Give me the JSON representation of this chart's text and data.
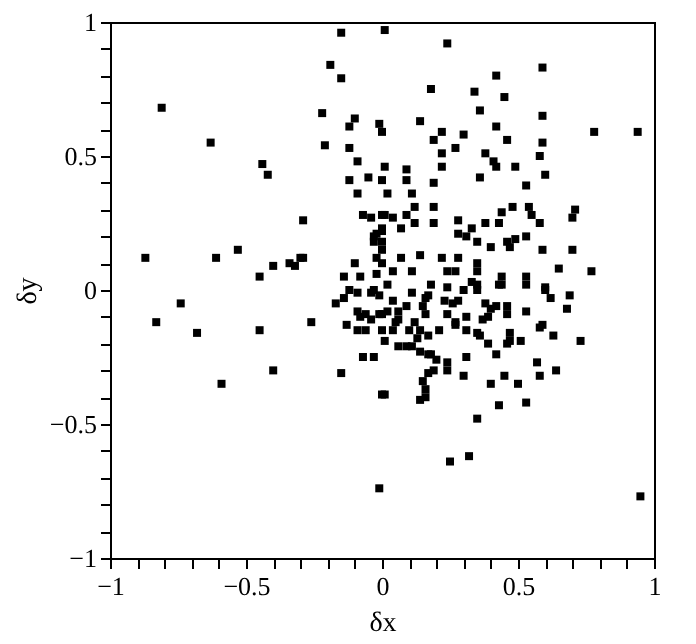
{
  "chart_data": {
    "type": "scatter",
    "xlabel": "δx",
    "ylabel": "δy",
    "marker": "square",
    "grid": false,
    "xlim": [
      -1,
      1
    ],
    "ylim": [
      -1,
      1
    ],
    "xticks": [
      -1,
      {
        "value": -0.9,
        "label": null
      },
      {
        "value": -0.8,
        "label": null
      },
      {
        "value": -0.7,
        "label": null
      },
      {
        "value": -0.6,
        "label": null
      },
      -0.5,
      {
        "value": -0.4,
        "label": null
      },
      {
        "value": -0.3,
        "label": null
      },
      {
        "value": -0.2,
        "label": null
      },
      {
        "value": -0.1,
        "label": null
      },
      0,
      {
        "value": 0.1,
        "label": null
      },
      {
        "value": 0.2,
        "label": null
      },
      {
        "value": 0.3,
        "label": null
      },
      {
        "value": 0.4,
        "label": null
      },
      0.5,
      {
        "value": 0.6,
        "label": null
      },
      {
        "value": 0.7,
        "label": null
      },
      {
        "value": 0.8,
        "label": null
      },
      {
        "value": 0.9,
        "label": null
      },
      1
    ],
    "yticks": [
      -1,
      {
        "value": -0.9,
        "label": null
      },
      {
        "value": -0.8,
        "label": null
      },
      {
        "value": -0.7,
        "label": null
      },
      {
        "value": -0.6,
        "label": null
      },
      -0.5,
      {
        "value": -0.4,
        "label": null
      },
      {
        "value": -0.3,
        "label": null
      },
      {
        "value": -0.2,
        "label": null
      },
      {
        "value": -0.1,
        "label": null
      },
      0,
      {
        "value": 0.1,
        "label": null
      },
      {
        "value": 0.2,
        "label": null
      },
      {
        "value": 0.3,
        "label": null
      },
      {
        "value": 0.4,
        "label": null
      },
      0.5,
      {
        "value": 0.6,
        "label": null
      },
      {
        "value": 0.7,
        "label": null
      },
      {
        "value": 0.8,
        "label": null
      },
      {
        "value": 0.9,
        "label": null
      },
      1
    ],
    "series": [
      {
        "color": "#000000",
        "x": [
          -0.81,
          -0.63,
          -0.44,
          -0.42,
          -0.29,
          -0.87,
          -0.61,
          -0.53,
          -0.45,
          -0.4,
          -0.34,
          -0.32,
          -0.3,
          -0.29,
          -0.15,
          -0.19,
          -0.15,
          -0.22,
          -0.1,
          -0.12,
          -0.01,
          0.0,
          -0.21,
          -0.12,
          -0.09,
          -0.12,
          -0.05,
          0.0,
          -0.09,
          -0.07,
          -0.04,
          0.0,
          -0.03,
          -0.02,
          0.0,
          -0.03,
          0.0,
          -0.1,
          -0.14,
          -0.08,
          -0.02,
          0.0,
          -0.02,
          -0.12,
          -0.03,
          0.01,
          0.24,
          0.59,
          0.42,
          0.18,
          0.34,
          0.45,
          0.36,
          0.59,
          0.14,
          0.42,
          0.22,
          0.19,
          0.3,
          0.78,
          0.94,
          0.46,
          0.59,
          0.27,
          0.22,
          0.38,
          0.58,
          0.41,
          0.42,
          0.49,
          0.22,
          0.01,
          0.09,
          0.6,
          0.09,
          0.36,
          0.19,
          0.53,
          0.02,
          0.11,
          0.48,
          0.54,
          0.12,
          0.19,
          0.71,
          0.44,
          0.55,
          0.7,
          0.01,
          0.04,
          0.09,
          0.28,
          0.38,
          0.43,
          0.12,
          0.19,
          0.0,
          0.07,
          0.33,
          0.58,
          0.28,
          0.31,
          0.49,
          0.53,
          0.35,
          0.46,
          0.47,
          0.4,
          0.59,
          0.7,
          0.0,
          0.07,
          0.14,
          0.22,
          0.28,
          0.35,
          0.65,
          0.77,
          0.04,
          0.11,
          0.24,
          0.27,
          0.35,
          0.44,
          0.53,
          0.18,
          0.24,
          0.6,
          0.02,
          0.33,
          -0.83,
          -0.74,
          -0.68,
          -0.59,
          -0.45,
          -0.4,
          -0.26,
          -0.17,
          -0.14,
          -0.09,
          -0.09,
          -0.08,
          -0.06,
          -0.04,
          -0.13,
          -0.09,
          -0.06,
          -0.04,
          -0.01,
          -0.01,
          -0.07,
          -0.03,
          -0.15,
          0.0,
          -0.01,
          0.25,
          0.32,
          0.95,
          0.01,
          0.14,
          0.16,
          0.16,
          0.15,
          0.35,
          0.43,
          0.53,
          0.4,
          0.5,
          0.45,
          0.3,
          0.24,
          0.17,
          0.19,
          0.58,
          0.64,
          0.57,
          0.24,
          0.2,
          0.31,
          0.42,
          0.18,
          0.73,
          0.63,
          0.59,
          0.58,
          0.47,
          0.51,
          0.46,
          0.39,
          0.47,
          0.35,
          0.36,
          0.31,
          0.27,
          0.21,
          0.06,
          0.09,
          0.11,
          0.14,
          0.17,
          0.13,
          0.17,
          0.01,
          0.0,
          0.04,
          0.1,
          0.14,
          0.06,
          0.05,
          0.12,
          0.0,
          0.02,
          0.06,
          0.09,
          0.16,
          0.15,
          0.16,
          0.17,
          0.11,
          0.04,
          0.23,
          0.26,
          0.28,
          0.24,
          0.27,
          0.31,
          0.3,
          0.35,
          0.38,
          0.4,
          0.42,
          0.37,
          0.39,
          0.46,
          0.46,
          0.43,
          0.44,
          0.35,
          0.53,
          0.53,
          0.6,
          0.62,
          0.69,
          0.68
        ],
        "values": [
          0.68,
          0.55,
          0.47,
          0.43,
          0.26,
          0.12,
          0.12,
          0.15,
          0.05,
          0.09,
          0.1,
          0.09,
          0.12,
          0.12,
          0.96,
          0.84,
          0.79,
          0.66,
          0.64,
          0.61,
          0.62,
          0.59,
          0.54,
          0.53,
          0.48,
          0.41,
          0.42,
          0.41,
          0.36,
          0.28,
          0.27,
          0.28,
          0.2,
          0.21,
          0.22,
          0.18,
          0.18,
          0.1,
          0.05,
          0.05,
          0.12,
          0.1,
          0.06,
          0.0,
          0.0,
          0.97,
          0.92,
          0.83,
          0.8,
          0.75,
          0.74,
          0.72,
          0.67,
          0.65,
          0.63,
          0.61,
          0.59,
          0.56,
          0.58,
          0.59,
          0.59,
          0.56,
          0.55,
          0.53,
          0.51,
          0.51,
          0.5,
          0.48,
          0.46,
          0.46,
          0.46,
          0.46,
          0.45,
          0.43,
          0.41,
          0.42,
          0.4,
          0.39,
          0.36,
          0.36,
          0.31,
          0.31,
          0.31,
          0.31,
          0.3,
          0.29,
          0.28,
          0.27,
          0.28,
          0.27,
          0.28,
          0.26,
          0.25,
          0.25,
          0.25,
          0.25,
          0.23,
          0.23,
          0.23,
          0.25,
          0.21,
          0.2,
          0.19,
          0.2,
          0.18,
          0.18,
          0.16,
          0.16,
          0.15,
          0.15,
          0.15,
          0.12,
          0.13,
          0.12,
          0.12,
          0.1,
          0.08,
          0.07,
          0.07,
          0.07,
          0.07,
          0.07,
          0.07,
          0.05,
          0.05,
          0.02,
          0.01,
          0.01,
          0.02,
          0.03,
          -0.12,
          -0.05,
          -0.16,
          -0.35,
          -0.15,
          -0.3,
          -0.12,
          -0.05,
          -0.03,
          -0.01,
          -0.08,
          -0.1,
          -0.09,
          -0.11,
          -0.13,
          -0.15,
          -0.15,
          -0.01,
          -0.02,
          -0.09,
          -0.25,
          -0.25,
          -0.31,
          -0.39,
          -0.74,
          -0.64,
          -0.62,
          -0.77,
          -0.39,
          -0.41,
          -0.4,
          -0.37,
          -0.34,
          -0.48,
          -0.43,
          -0.42,
          -0.35,
          -0.35,
          -0.32,
          -0.32,
          -0.3,
          -0.31,
          -0.3,
          -0.32,
          -0.3,
          -0.27,
          -0.27,
          -0.26,
          -0.25,
          -0.24,
          -0.24,
          -0.19,
          -0.17,
          -0.13,
          -0.14,
          -0.19,
          -0.19,
          -0.2,
          -0.2,
          -0.16,
          -0.16,
          -0.17,
          -0.15,
          -0.13,
          -0.15,
          -0.21,
          -0.21,
          -0.21,
          -0.23,
          -0.24,
          -0.18,
          -0.17,
          -0.19,
          -0.15,
          -0.15,
          -0.15,
          -0.15,
          -0.11,
          -0.12,
          -0.12,
          -0.09,
          -0.08,
          -0.08,
          -0.06,
          -0.09,
          -0.06,
          -0.03,
          -0.02,
          -0.01,
          -0.04,
          -0.04,
          -0.05,
          -0.04,
          -0.09,
          -0.12,
          -0.1,
          0.0,
          0.0,
          -0.05,
          -0.07,
          -0.06,
          -0.11,
          -0.1,
          -0.06,
          -0.09,
          0.02,
          0.02,
          0.02,
          0.02,
          -0.08,
          0.0,
          -0.03,
          -0.02,
          -0.07
        ]
      }
    ]
  }
}
